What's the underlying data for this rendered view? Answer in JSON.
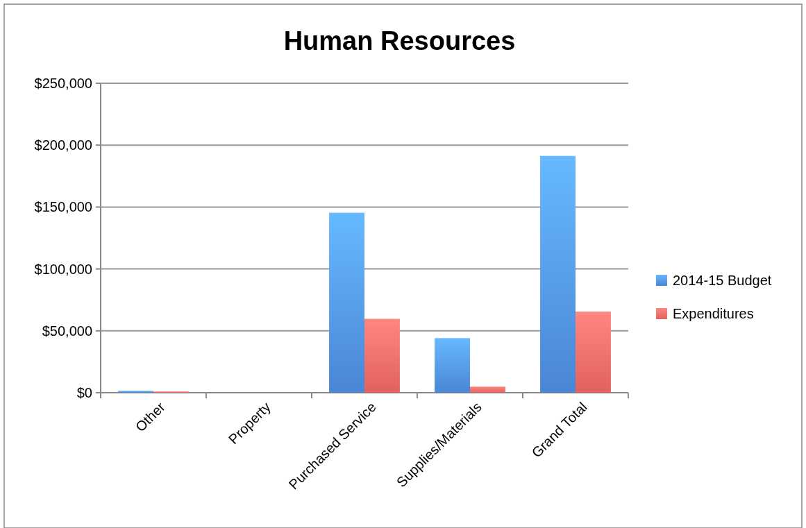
{
  "chart_data": {
    "type": "bar",
    "title": "Human Resources",
    "categories": [
      "Other",
      "Property",
      "Purchased Service",
      "Supplies/Materials",
      "Grand Total"
    ],
    "series": [
      {
        "name": "2014-15 Budget",
        "color": "#4a86d4",
        "values": [
          1500,
          0,
          145400,
          44100,
          191300
        ]
      },
      {
        "name": "Expenditures",
        "color": "#e0625c",
        "values": [
          1000,
          0,
          59700,
          4900,
          65500
        ]
      }
    ],
    "ylim": [
      0,
      250000
    ],
    "yticks": [
      {
        "value": 0,
        "label": "$0"
      },
      {
        "value": 50000,
        "label": "$50,000"
      },
      {
        "value": 100000,
        "label": "$100,000"
      },
      {
        "value": 150000,
        "label": "$150,000"
      },
      {
        "value": 200000,
        "label": "$200,000"
      },
      {
        "value": 250000,
        "label": "$250,000"
      }
    ],
    "grid": "y",
    "legend": "right"
  }
}
